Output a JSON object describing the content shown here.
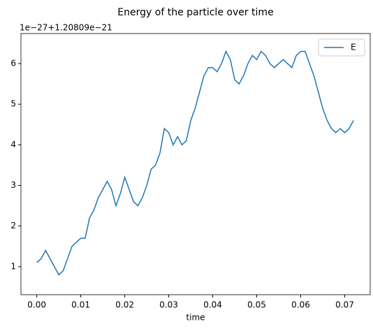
{
  "chart_data": {
    "type": "line",
    "title": "Energy of the particle over time",
    "offset_label": "1e−27+1.20809e−21",
    "xlabel": "time",
    "x": [
      0.0,
      0.001,
      0.002,
      0.003,
      0.004,
      0.005,
      0.006,
      0.007,
      0.008,
      0.009,
      0.01,
      0.011,
      0.012,
      0.013,
      0.014,
      0.015,
      0.016,
      0.017,
      0.018,
      0.019,
      0.02,
      0.021,
      0.022,
      0.023,
      0.024,
      0.025,
      0.026,
      0.027,
      0.028,
      0.029,
      0.03,
      0.031,
      0.032,
      0.033,
      0.034,
      0.035,
      0.036,
      0.037,
      0.038,
      0.039,
      0.04,
      0.041,
      0.042,
      0.043,
      0.044,
      0.045,
      0.046,
      0.047,
      0.048,
      0.049,
      0.05,
      0.051,
      0.052,
      0.053,
      0.054,
      0.055,
      0.056,
      0.057,
      0.058,
      0.059,
      0.06,
      0.061,
      0.062,
      0.063,
      0.064,
      0.065,
      0.066,
      0.067,
      0.068,
      0.069,
      0.07,
      0.071,
      0.072
    ],
    "series": [
      {
        "name": "E",
        "color": "#1f77b4",
        "values": [
          1.1,
          1.2,
          1.4,
          1.2,
          1.0,
          0.8,
          0.9,
          1.2,
          1.5,
          1.6,
          1.7,
          1.7,
          2.2,
          2.4,
          2.7,
          2.9,
          3.1,
          2.9,
          2.5,
          2.8,
          3.2,
          2.9,
          2.6,
          2.5,
          2.7,
          3.0,
          3.4,
          3.5,
          3.8,
          4.4,
          4.3,
          4.0,
          4.2,
          4.0,
          4.1,
          4.6,
          4.9,
          5.3,
          5.7,
          5.9,
          5.9,
          5.8,
          6.0,
          6.3,
          6.1,
          5.6,
          5.5,
          5.7,
          6.0,
          6.2,
          6.1,
          6.3,
          6.2,
          6.0,
          5.9,
          6.0,
          6.1,
          6.0,
          5.9,
          6.2,
          6.3,
          6.3,
          6.0,
          5.7,
          5.3,
          4.9,
          4.6,
          4.4,
          4.3,
          4.4,
          4.3,
          4.4,
          4.6
        ]
      }
    ],
    "xlim": [
      -0.0036,
      0.0758
    ],
    "ylim": [
      0.31,
      6.74
    ],
    "xticks": [
      {
        "value": 0,
        "label": "0.00"
      },
      0.01,
      0.02,
      0.03,
      0.04,
      0.05,
      0.06,
      0.07
    ],
    "yticks": [
      1,
      2,
      3,
      4,
      5,
      6
    ],
    "legend": "upper right"
  }
}
